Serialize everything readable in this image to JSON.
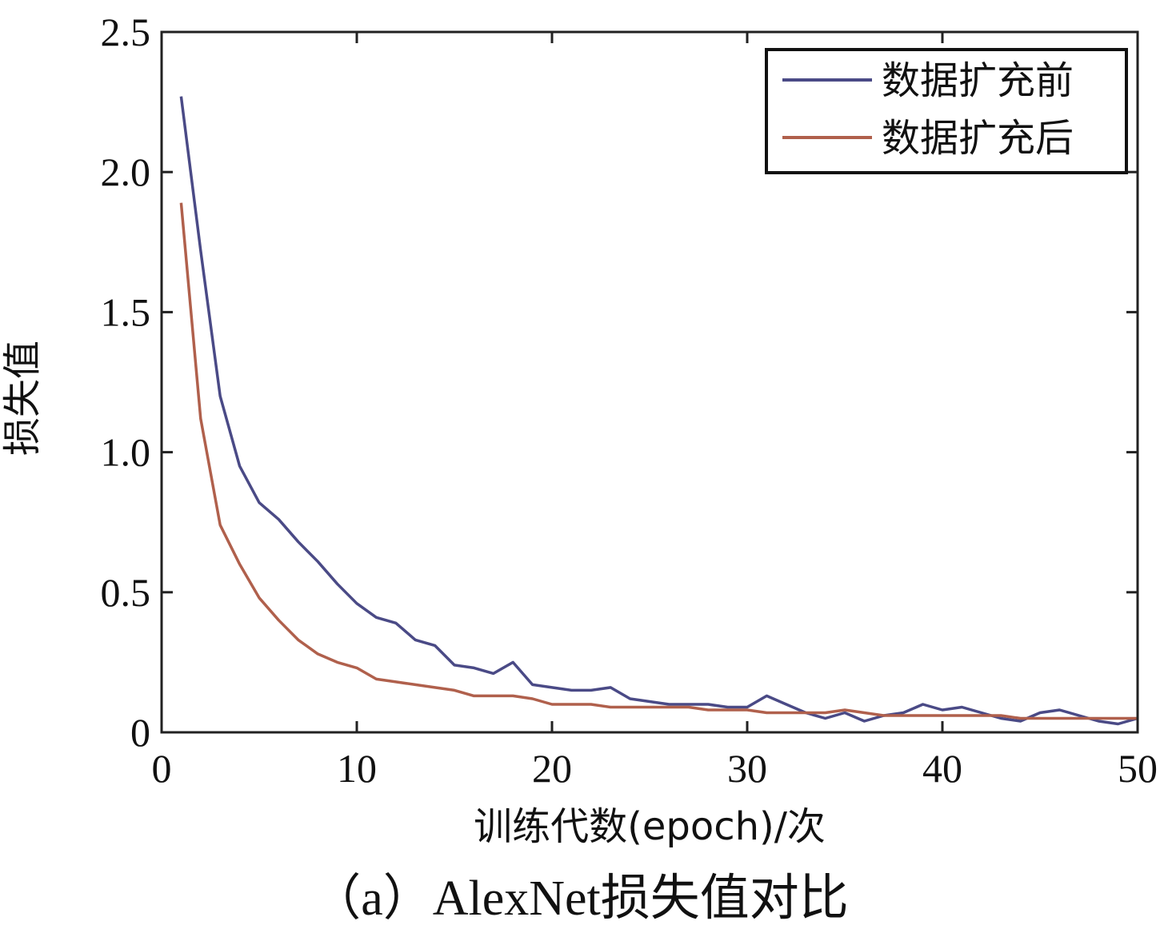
{
  "caption": "（a）AlexNet损失值对比",
  "chart_data": {
    "type": "line",
    "xlabel": "训练代数(epoch)/次",
    "ylabel": "损失值",
    "xlim": [
      0,
      50
    ],
    "ylim": [
      0,
      2.5
    ],
    "xticks": [
      0,
      10,
      20,
      30,
      40,
      50
    ],
    "xtick_labels": [
      "0",
      "10",
      "20",
      "30",
      "40",
      "50"
    ],
    "yticks": [
      0,
      0.5,
      1.0,
      1.5,
      2.0,
      2.5
    ],
    "ytick_labels": [
      "0",
      "0.5",
      "1.0",
      "1.5",
      "2.0",
      "2.5"
    ],
    "legend_position": "top-right",
    "x": [
      1,
      2,
      3,
      4,
      5,
      6,
      7,
      8,
      9,
      10,
      11,
      12,
      13,
      14,
      15,
      16,
      17,
      18,
      19,
      20,
      21,
      22,
      23,
      24,
      25,
      26,
      27,
      28,
      29,
      30,
      31,
      32,
      33,
      34,
      35,
      36,
      37,
      38,
      39,
      40,
      41,
      42,
      43,
      44,
      45,
      46,
      47,
      48,
      49,
      50
    ],
    "series": [
      {
        "name": "数据扩充前",
        "color": "#4a4a86",
        "values": [
          2.27,
          1.72,
          1.2,
          0.95,
          0.82,
          0.76,
          0.68,
          0.61,
          0.53,
          0.46,
          0.41,
          0.39,
          0.33,
          0.31,
          0.24,
          0.23,
          0.21,
          0.25,
          0.17,
          0.16,
          0.15,
          0.15,
          0.16,
          0.12,
          0.11,
          0.1,
          0.1,
          0.1,
          0.09,
          0.09,
          0.13,
          0.1,
          0.07,
          0.05,
          0.07,
          0.04,
          0.06,
          0.07,
          0.1,
          0.08,
          0.09,
          0.07,
          0.05,
          0.04,
          0.07,
          0.08,
          0.06,
          0.04,
          0.03,
          0.05
        ]
      },
      {
        "name": "数据扩充后",
        "color": "#b0604c",
        "values": [
          1.89,
          1.12,
          0.74,
          0.6,
          0.48,
          0.4,
          0.33,
          0.28,
          0.25,
          0.23,
          0.19,
          0.18,
          0.17,
          0.16,
          0.15,
          0.13,
          0.13,
          0.13,
          0.12,
          0.1,
          0.1,
          0.1,
          0.09,
          0.09,
          0.09,
          0.09,
          0.09,
          0.08,
          0.08,
          0.08,
          0.07,
          0.07,
          0.07,
          0.07,
          0.08,
          0.07,
          0.06,
          0.06,
          0.06,
          0.06,
          0.06,
          0.06,
          0.06,
          0.05,
          0.05,
          0.05,
          0.05,
          0.05,
          0.05,
          0.05
        ]
      }
    ]
  }
}
